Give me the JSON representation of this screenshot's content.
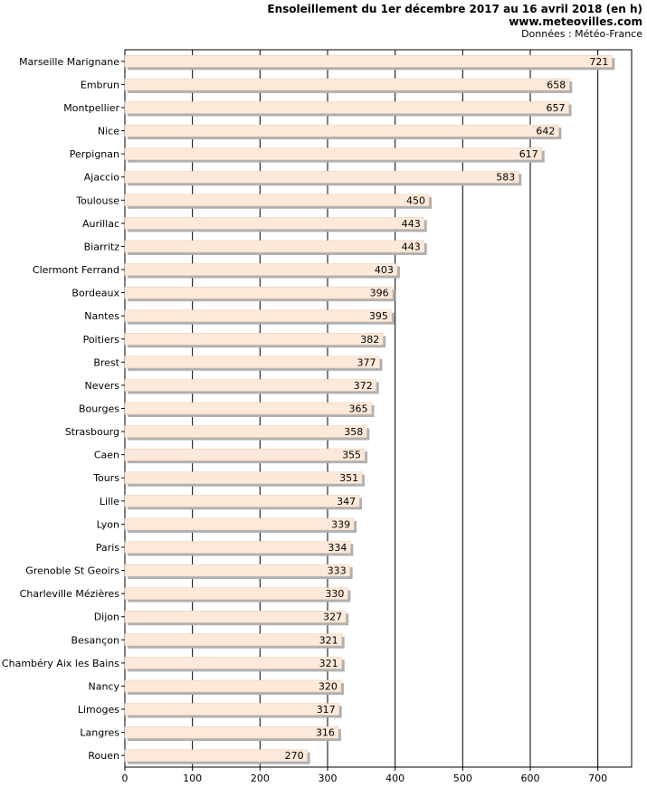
{
  "chart_data": {
    "type": "bar",
    "orientation": "horizontal",
    "title": "Ensoleillement du 1er décembre 2017 au 16 avril 2018 (en h)",
    "site": "www.meteovilles.com",
    "source": "Données : Météo-France",
    "categories": [
      "Marseille Marignane",
      "Embrun",
      "Montpellier",
      "Nice",
      "Perpignan",
      "Ajaccio",
      "Toulouse",
      "Aurillac",
      "Biarritz",
      "Clermont Ferrand",
      "Bordeaux",
      "Nantes",
      "Poitiers",
      "Brest",
      "Nevers",
      "Bourges",
      "Strasbourg",
      "Caen",
      "Tours",
      "Lille",
      "Lyon",
      "Paris",
      "Grenoble St Geoirs",
      "Charleville Mézières",
      "Dijon",
      "Besançon",
      "Chambéry Aix les Bains",
      "Nancy",
      "Limoges",
      "Langres",
      "Rouen"
    ],
    "values": [
      721,
      658,
      657,
      642,
      617,
      583,
      450,
      443,
      443,
      403,
      396,
      395,
      382,
      377,
      372,
      365,
      358,
      355,
      351,
      347,
      339,
      334,
      333,
      330,
      327,
      321,
      321,
      320,
      317,
      316,
      270
    ],
    "xlim": [
      0,
      750
    ],
    "xticks": [
      0,
      100,
      200,
      300,
      400,
      500,
      600,
      700
    ],
    "colors": {
      "bar": "#fde9d9",
      "bar_edge": "#e8c9b0",
      "shadow": "#b0b0b0",
      "grid": "#000000"
    }
  }
}
